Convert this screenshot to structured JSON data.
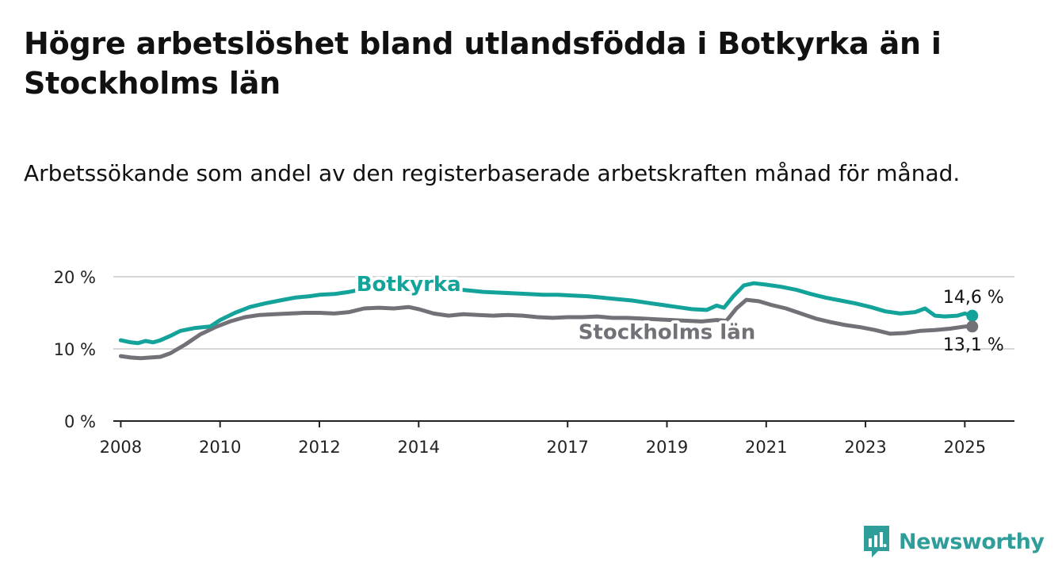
{
  "title": "Högre arbetslöshet bland utlandsfödda i Botkyrka än i Stockholms län",
  "subtitle": "Arbetssökande som andel av den registerbaserade arbetskraften månad för månad.",
  "brand": {
    "name": "Newsworthy",
    "icon": "newsworthy-logo-icon",
    "color": "#2f9e9a"
  },
  "chart_data": {
    "type": "line",
    "title": "Högre arbetslöshet bland utlandsfödda i Botkyrka än i Stockholms län",
    "subtitle": "Arbetssökande som andel av den registerbaserade arbetskraften månad för månad.",
    "xlabel": "",
    "ylabel": "",
    "xlim": [
      2007.85,
      2026.0
    ],
    "ylim": [
      0,
      20
    ],
    "x_ticks": [
      {
        "value": 2008,
        "label": "2008"
      },
      {
        "value": 2010,
        "label": "2010"
      },
      {
        "value": 2012,
        "label": "2012"
      },
      {
        "value": 2014,
        "label": "2014"
      },
      {
        "value": 2017,
        "label": "2017"
      },
      {
        "value": 2019,
        "label": "2019"
      },
      {
        "value": 2021,
        "label": "2021"
      },
      {
        "value": 2023,
        "label": "2023"
      },
      {
        "value": 2025,
        "label": "2025"
      }
    ],
    "y_ticks": [
      {
        "value": 0,
        "label": "0 %"
      },
      {
        "value": 10,
        "label": "10 %"
      },
      {
        "value": 20,
        "label": "20 %"
      }
    ],
    "grid": "horizontal",
    "series": [
      {
        "name": "Botkyrka",
        "color": "#14a39a",
        "end_label": "14,6 %",
        "points": [
          [
            2008.0,
            11.2
          ],
          [
            2008.2,
            10.9
          ],
          [
            2008.35,
            10.8
          ],
          [
            2008.5,
            11.1
          ],
          [
            2008.65,
            10.9
          ],
          [
            2008.8,
            11.2
          ],
          [
            2009.0,
            11.8
          ],
          [
            2009.2,
            12.5
          ],
          [
            2009.5,
            12.9
          ],
          [
            2009.8,
            13.1
          ],
          [
            2010.0,
            14.0
          ],
          [
            2010.3,
            15.0
          ],
          [
            2010.6,
            15.8
          ],
          [
            2010.9,
            16.3
          ],
          [
            2011.2,
            16.7
          ],
          [
            2011.5,
            17.1
          ],
          [
            2011.8,
            17.3
          ],
          [
            2012.0,
            17.5
          ],
          [
            2012.3,
            17.6
          ],
          [
            2012.6,
            17.9
          ],
          [
            2012.9,
            18.3
          ],
          [
            2013.2,
            18.6
          ],
          [
            2013.5,
            18.9
          ],
          [
            2013.8,
            19.0
          ],
          [
            2014.1,
            18.8
          ],
          [
            2014.4,
            18.5
          ],
          [
            2014.7,
            18.3
          ],
          [
            2015.0,
            18.1
          ],
          [
            2015.3,
            17.9
          ],
          [
            2015.6,
            17.8
          ],
          [
            2015.9,
            17.7
          ],
          [
            2016.2,
            17.6
          ],
          [
            2016.5,
            17.5
          ],
          [
            2016.8,
            17.5
          ],
          [
            2017.1,
            17.4
          ],
          [
            2017.4,
            17.3
          ],
          [
            2017.7,
            17.1
          ],
          [
            2018.0,
            16.9
          ],
          [
            2018.3,
            16.7
          ],
          [
            2018.6,
            16.4
          ],
          [
            2018.9,
            16.1
          ],
          [
            2019.2,
            15.8
          ],
          [
            2019.5,
            15.5
          ],
          [
            2019.8,
            15.4
          ],
          [
            2020.0,
            16.0
          ],
          [
            2020.15,
            15.7
          ],
          [
            2020.35,
            17.4
          ],
          [
            2020.55,
            18.8
          ],
          [
            2020.75,
            19.1
          ],
          [
            2021.0,
            18.9
          ],
          [
            2021.3,
            18.6
          ],
          [
            2021.6,
            18.2
          ],
          [
            2021.9,
            17.6
          ],
          [
            2022.2,
            17.1
          ],
          [
            2022.5,
            16.7
          ],
          [
            2022.8,
            16.3
          ],
          [
            2023.1,
            15.8
          ],
          [
            2023.4,
            15.2
          ],
          [
            2023.7,
            14.9
          ],
          [
            2024.0,
            15.1
          ],
          [
            2024.2,
            15.6
          ],
          [
            2024.4,
            14.6
          ],
          [
            2024.6,
            14.5
          ],
          [
            2024.85,
            14.6
          ],
          [
            2025.0,
            14.9
          ],
          [
            2025.15,
            14.6
          ]
        ]
      },
      {
        "name": "Stockholms län",
        "color": "#727178",
        "end_label": "13,1 %",
        "points": [
          [
            2008.0,
            9.0
          ],
          [
            2008.2,
            8.8
          ],
          [
            2008.4,
            8.7
          ],
          [
            2008.6,
            8.8
          ],
          [
            2008.8,
            8.9
          ],
          [
            2009.0,
            9.4
          ],
          [
            2009.3,
            10.6
          ],
          [
            2009.6,
            12.0
          ],
          [
            2009.9,
            13.0
          ],
          [
            2010.2,
            13.8
          ],
          [
            2010.5,
            14.4
          ],
          [
            2010.8,
            14.7
          ],
          [
            2011.1,
            14.8
          ],
          [
            2011.4,
            14.9
          ],
          [
            2011.7,
            15.0
          ],
          [
            2012.0,
            15.0
          ],
          [
            2012.3,
            14.9
          ],
          [
            2012.6,
            15.1
          ],
          [
            2012.9,
            15.6
          ],
          [
            2013.2,
            15.7
          ],
          [
            2013.5,
            15.6
          ],
          [
            2013.8,
            15.8
          ],
          [
            2014.0,
            15.5
          ],
          [
            2014.3,
            14.9
          ],
          [
            2014.6,
            14.6
          ],
          [
            2014.9,
            14.8
          ],
          [
            2015.2,
            14.7
          ],
          [
            2015.5,
            14.6
          ],
          [
            2015.8,
            14.7
          ],
          [
            2016.1,
            14.6
          ],
          [
            2016.4,
            14.4
          ],
          [
            2016.7,
            14.3
          ],
          [
            2017.0,
            14.4
          ],
          [
            2017.3,
            14.4
          ],
          [
            2017.6,
            14.5
          ],
          [
            2017.9,
            14.3
          ],
          [
            2018.2,
            14.3
          ],
          [
            2018.5,
            14.2
          ],
          [
            2018.8,
            14.1
          ],
          [
            2019.1,
            14.0
          ],
          [
            2019.4,
            13.9
          ],
          [
            2019.7,
            13.8
          ],
          [
            2020.0,
            14.0
          ],
          [
            2020.2,
            13.9
          ],
          [
            2020.4,
            15.6
          ],
          [
            2020.6,
            16.8
          ],
          [
            2020.85,
            16.6
          ],
          [
            2021.1,
            16.1
          ],
          [
            2021.4,
            15.6
          ],
          [
            2021.7,
            14.9
          ],
          [
            2022.0,
            14.2
          ],
          [
            2022.3,
            13.7
          ],
          [
            2022.6,
            13.3
          ],
          [
            2022.9,
            13.0
          ],
          [
            2023.2,
            12.6
          ],
          [
            2023.5,
            12.1
          ],
          [
            2023.8,
            12.2
          ],
          [
            2024.1,
            12.5
          ],
          [
            2024.4,
            12.6
          ],
          [
            2024.7,
            12.8
          ],
          [
            2025.0,
            13.1
          ],
          [
            2025.15,
            13.1
          ]
        ]
      }
    ],
    "annotations": [
      {
        "text": "Botkyrka",
        "series": "Botkyrka"
      },
      {
        "text": "Stockholms län",
        "series": "Stockholms län"
      }
    ]
  }
}
